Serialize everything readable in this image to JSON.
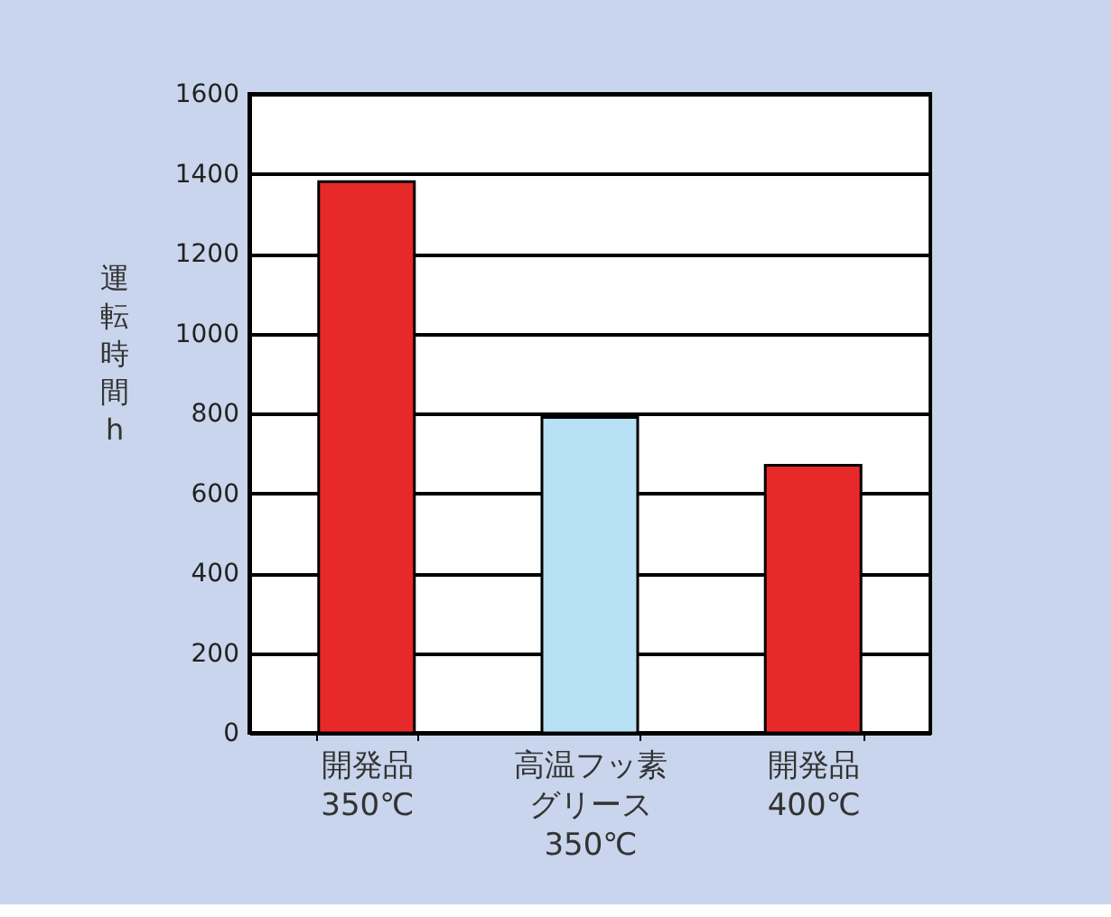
{
  "chart_data": {
    "type": "bar",
    "ylabel": "運転時間 h",
    "categories": [
      "開発品\n350℃",
      "高温フッ素グリース\n350℃",
      "開発品\n400℃"
    ],
    "values": [
      1380,
      790,
      670
    ],
    "colors": [
      "#e8292a",
      "#b9e1f5",
      "#e8292a"
    ],
    "ylim": [
      0,
      1600
    ],
    "yticks": [
      0,
      200,
      400,
      600,
      800,
      1000,
      1200,
      1400,
      1600
    ],
    "grid": "y"
  }
}
